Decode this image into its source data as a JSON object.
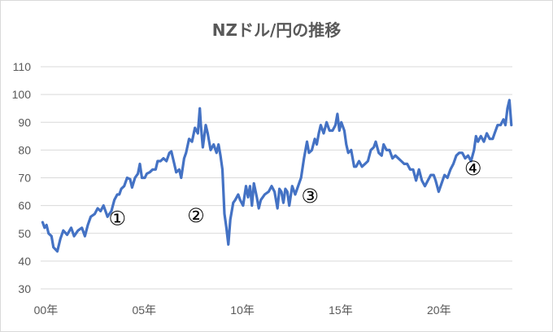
{
  "chart_data": {
    "type": "line",
    "title": "NZドル/円の推移",
    "xlabel": "",
    "ylabel": "",
    "ylim": [
      30,
      110
    ],
    "yticks": [
      30,
      40,
      50,
      60,
      70,
      80,
      90,
      100,
      110
    ],
    "xlim": [
      1999.9,
      2023.9
    ],
    "xticks": [
      {
        "x": 2000,
        "label": "00年"
      },
      {
        "x": 2005,
        "label": "05年"
      },
      {
        "x": 2010,
        "label": "10年"
      },
      {
        "x": 2015,
        "label": "15年"
      },
      {
        "x": 2020,
        "label": "20年"
      }
    ],
    "grid": true,
    "legend": "none",
    "series": [
      {
        "color": "#4472c4",
        "points": [
          [
            2000.0,
            54
          ],
          [
            2000.1,
            52
          ],
          [
            2000.2,
            53
          ],
          [
            2000.3,
            50
          ],
          [
            2000.45,
            49
          ],
          [
            2000.55,
            45
          ],
          [
            2000.75,
            43.5
          ],
          [
            2000.9,
            48
          ],
          [
            2001.05,
            51
          ],
          [
            2001.25,
            49.5
          ],
          [
            2001.45,
            52
          ],
          [
            2001.6,
            49
          ],
          [
            2001.8,
            51
          ],
          [
            2002.0,
            52
          ],
          [
            2002.15,
            49
          ],
          [
            2002.3,
            53
          ],
          [
            2002.45,
            56
          ],
          [
            2002.65,
            57
          ],
          [
            2002.8,
            59
          ],
          [
            2002.95,
            58
          ],
          [
            2003.1,
            60
          ],
          [
            2003.3,
            56
          ],
          [
            2003.5,
            58
          ],
          [
            2003.65,
            62
          ],
          [
            2003.8,
            64
          ],
          [
            2003.9,
            64
          ],
          [
            2004.0,
            66
          ],
          [
            2004.15,
            67
          ],
          [
            2004.3,
            70
          ],
          [
            2004.45,
            69.5
          ],
          [
            2004.55,
            66.5
          ],
          [
            2004.7,
            70
          ],
          [
            2004.85,
            71.5
          ],
          [
            2004.95,
            75
          ],
          [
            2005.05,
            70
          ],
          [
            2005.2,
            70
          ],
          [
            2005.3,
            71.5
          ],
          [
            2005.45,
            72
          ],
          [
            2005.6,
            73
          ],
          [
            2005.75,
            73
          ],
          [
            2005.85,
            76
          ],
          [
            2006.0,
            76
          ],
          [
            2006.15,
            77
          ],
          [
            2006.3,
            76
          ],
          [
            2006.45,
            79
          ],
          [
            2006.55,
            79.5
          ],
          [
            2006.7,
            75
          ],
          [
            2006.8,
            72
          ],
          [
            2006.95,
            73
          ],
          [
            2007.05,
            70
          ],
          [
            2007.2,
            77
          ],
          [
            2007.3,
            79
          ],
          [
            2007.45,
            84
          ],
          [
            2007.6,
            83
          ],
          [
            2007.75,
            88
          ],
          [
            2007.9,
            86
          ],
          [
            2008.0,
            95
          ],
          [
            2008.05,
            89
          ],
          [
            2008.15,
            81
          ],
          [
            2008.3,
            89
          ],
          [
            2008.4,
            86
          ],
          [
            2008.55,
            80
          ],
          [
            2008.7,
            82
          ],
          [
            2008.85,
            79
          ],
          [
            2008.95,
            82
          ],
          [
            2009.05,
            78
          ],
          [
            2009.15,
            73
          ],
          [
            2009.25,
            57
          ],
          [
            2009.35,
            52
          ],
          [
            2009.45,
            46
          ],
          [
            2009.55,
            55
          ],
          [
            2009.7,
            61
          ],
          [
            2009.8,
            62
          ],
          [
            2009.95,
            64
          ],
          [
            2010.05,
            62
          ],
          [
            2010.2,
            60
          ],
          [
            2010.35,
            67
          ],
          [
            2010.45,
            63
          ],
          [
            2010.55,
            67
          ],
          [
            2010.65,
            60
          ],
          [
            2010.75,
            68
          ],
          [
            2010.9,
            63
          ],
          [
            2011.0,
            59
          ],
          [
            2011.1,
            62
          ],
          [
            2011.3,
            64
          ],
          [
            2011.5,
            65
          ],
          [
            2011.65,
            67
          ],
          [
            2011.8,
            65
          ],
          [
            2011.95,
            59
          ],
          [
            2012.05,
            66
          ],
          [
            2012.15,
            65
          ],
          [
            2012.25,
            61
          ],
          [
            2012.35,
            66
          ],
          [
            2012.45,
            65
          ],
          [
            2012.55,
            60
          ],
          [
            2012.7,
            67
          ],
          [
            2012.85,
            64
          ],
          [
            2013.0,
            67
          ],
          [
            2013.15,
            70
          ],
          [
            2013.3,
            77
          ],
          [
            2013.45,
            83
          ],
          [
            2013.55,
            79
          ],
          [
            2013.7,
            80
          ],
          [
            2013.85,
            84
          ],
          [
            2013.95,
            82
          ],
          [
            2014.05,
            86
          ],
          [
            2014.15,
            89
          ],
          [
            2014.3,
            86
          ],
          [
            2014.45,
            90
          ],
          [
            2014.6,
            87
          ],
          [
            2014.75,
            87
          ],
          [
            2014.9,
            89
          ],
          [
            2015.0,
            93
          ],
          [
            2015.1,
            87
          ],
          [
            2015.2,
            90
          ],
          [
            2015.35,
            87
          ],
          [
            2015.45,
            82
          ],
          [
            2015.55,
            79
          ],
          [
            2015.7,
            80
          ],
          [
            2015.85,
            74
          ],
          [
            2015.95,
            74
          ],
          [
            2016.1,
            76
          ],
          [
            2016.25,
            74
          ],
          [
            2016.4,
            75
          ],
          [
            2016.55,
            76
          ],
          [
            2016.7,
            80
          ],
          [
            2016.85,
            81
          ],
          [
            2016.95,
            83
          ],
          [
            2017.1,
            79
          ],
          [
            2017.25,
            78
          ],
          [
            2017.35,
            82
          ],
          [
            2017.5,
            80
          ],
          [
            2017.65,
            80
          ],
          [
            2017.8,
            77
          ],
          [
            2017.95,
            78
          ],
          [
            2018.1,
            77
          ],
          [
            2018.25,
            76
          ],
          [
            2018.4,
            75
          ],
          [
            2018.55,
            75
          ],
          [
            2018.7,
            73
          ],
          [
            2018.85,
            73
          ],
          [
            2019.0,
            69
          ],
          [
            2019.15,
            73
          ],
          [
            2019.3,
            69
          ],
          [
            2019.45,
            67
          ],
          [
            2019.6,
            69
          ],
          [
            2019.75,
            71
          ],
          [
            2019.9,
            71
          ],
          [
            2020.0,
            69
          ],
          [
            2020.15,
            65
          ],
          [
            2020.3,
            68
          ],
          [
            2020.45,
            71
          ],
          [
            2020.6,
            70
          ],
          [
            2020.75,
            73
          ],
          [
            2020.9,
            75
          ],
          [
            2021.05,
            78
          ],
          [
            2021.2,
            79
          ],
          [
            2021.35,
            79
          ],
          [
            2021.5,
            77
          ],
          [
            2021.65,
            78
          ],
          [
            2021.8,
            76
          ],
          [
            2021.95,
            80
          ],
          [
            2022.05,
            85
          ],
          [
            2022.15,
            83
          ],
          [
            2022.3,
            85
          ],
          [
            2022.45,
            83
          ],
          [
            2022.6,
            86
          ],
          [
            2022.75,
            84
          ],
          [
            2022.9,
            84
          ],
          [
            2023.0,
            86
          ],
          [
            2023.15,
            89
          ],
          [
            2023.3,
            89
          ],
          [
            2023.45,
            91
          ],
          [
            2023.55,
            89
          ],
          [
            2023.65,
            95
          ],
          [
            2023.75,
            98
          ],
          [
            2023.85,
            89
          ]
        ]
      }
    ],
    "annotations": [
      {
        "text": "①",
        "x": 2003.8,
        "y": 53
      },
      {
        "text": "②",
        "x": 2007.8,
        "y": 54
      },
      {
        "text": "③",
        "x": 2013.6,
        "y": 61
      },
      {
        "text": "④",
        "x": 2021.9,
        "y": 71
      }
    ]
  }
}
